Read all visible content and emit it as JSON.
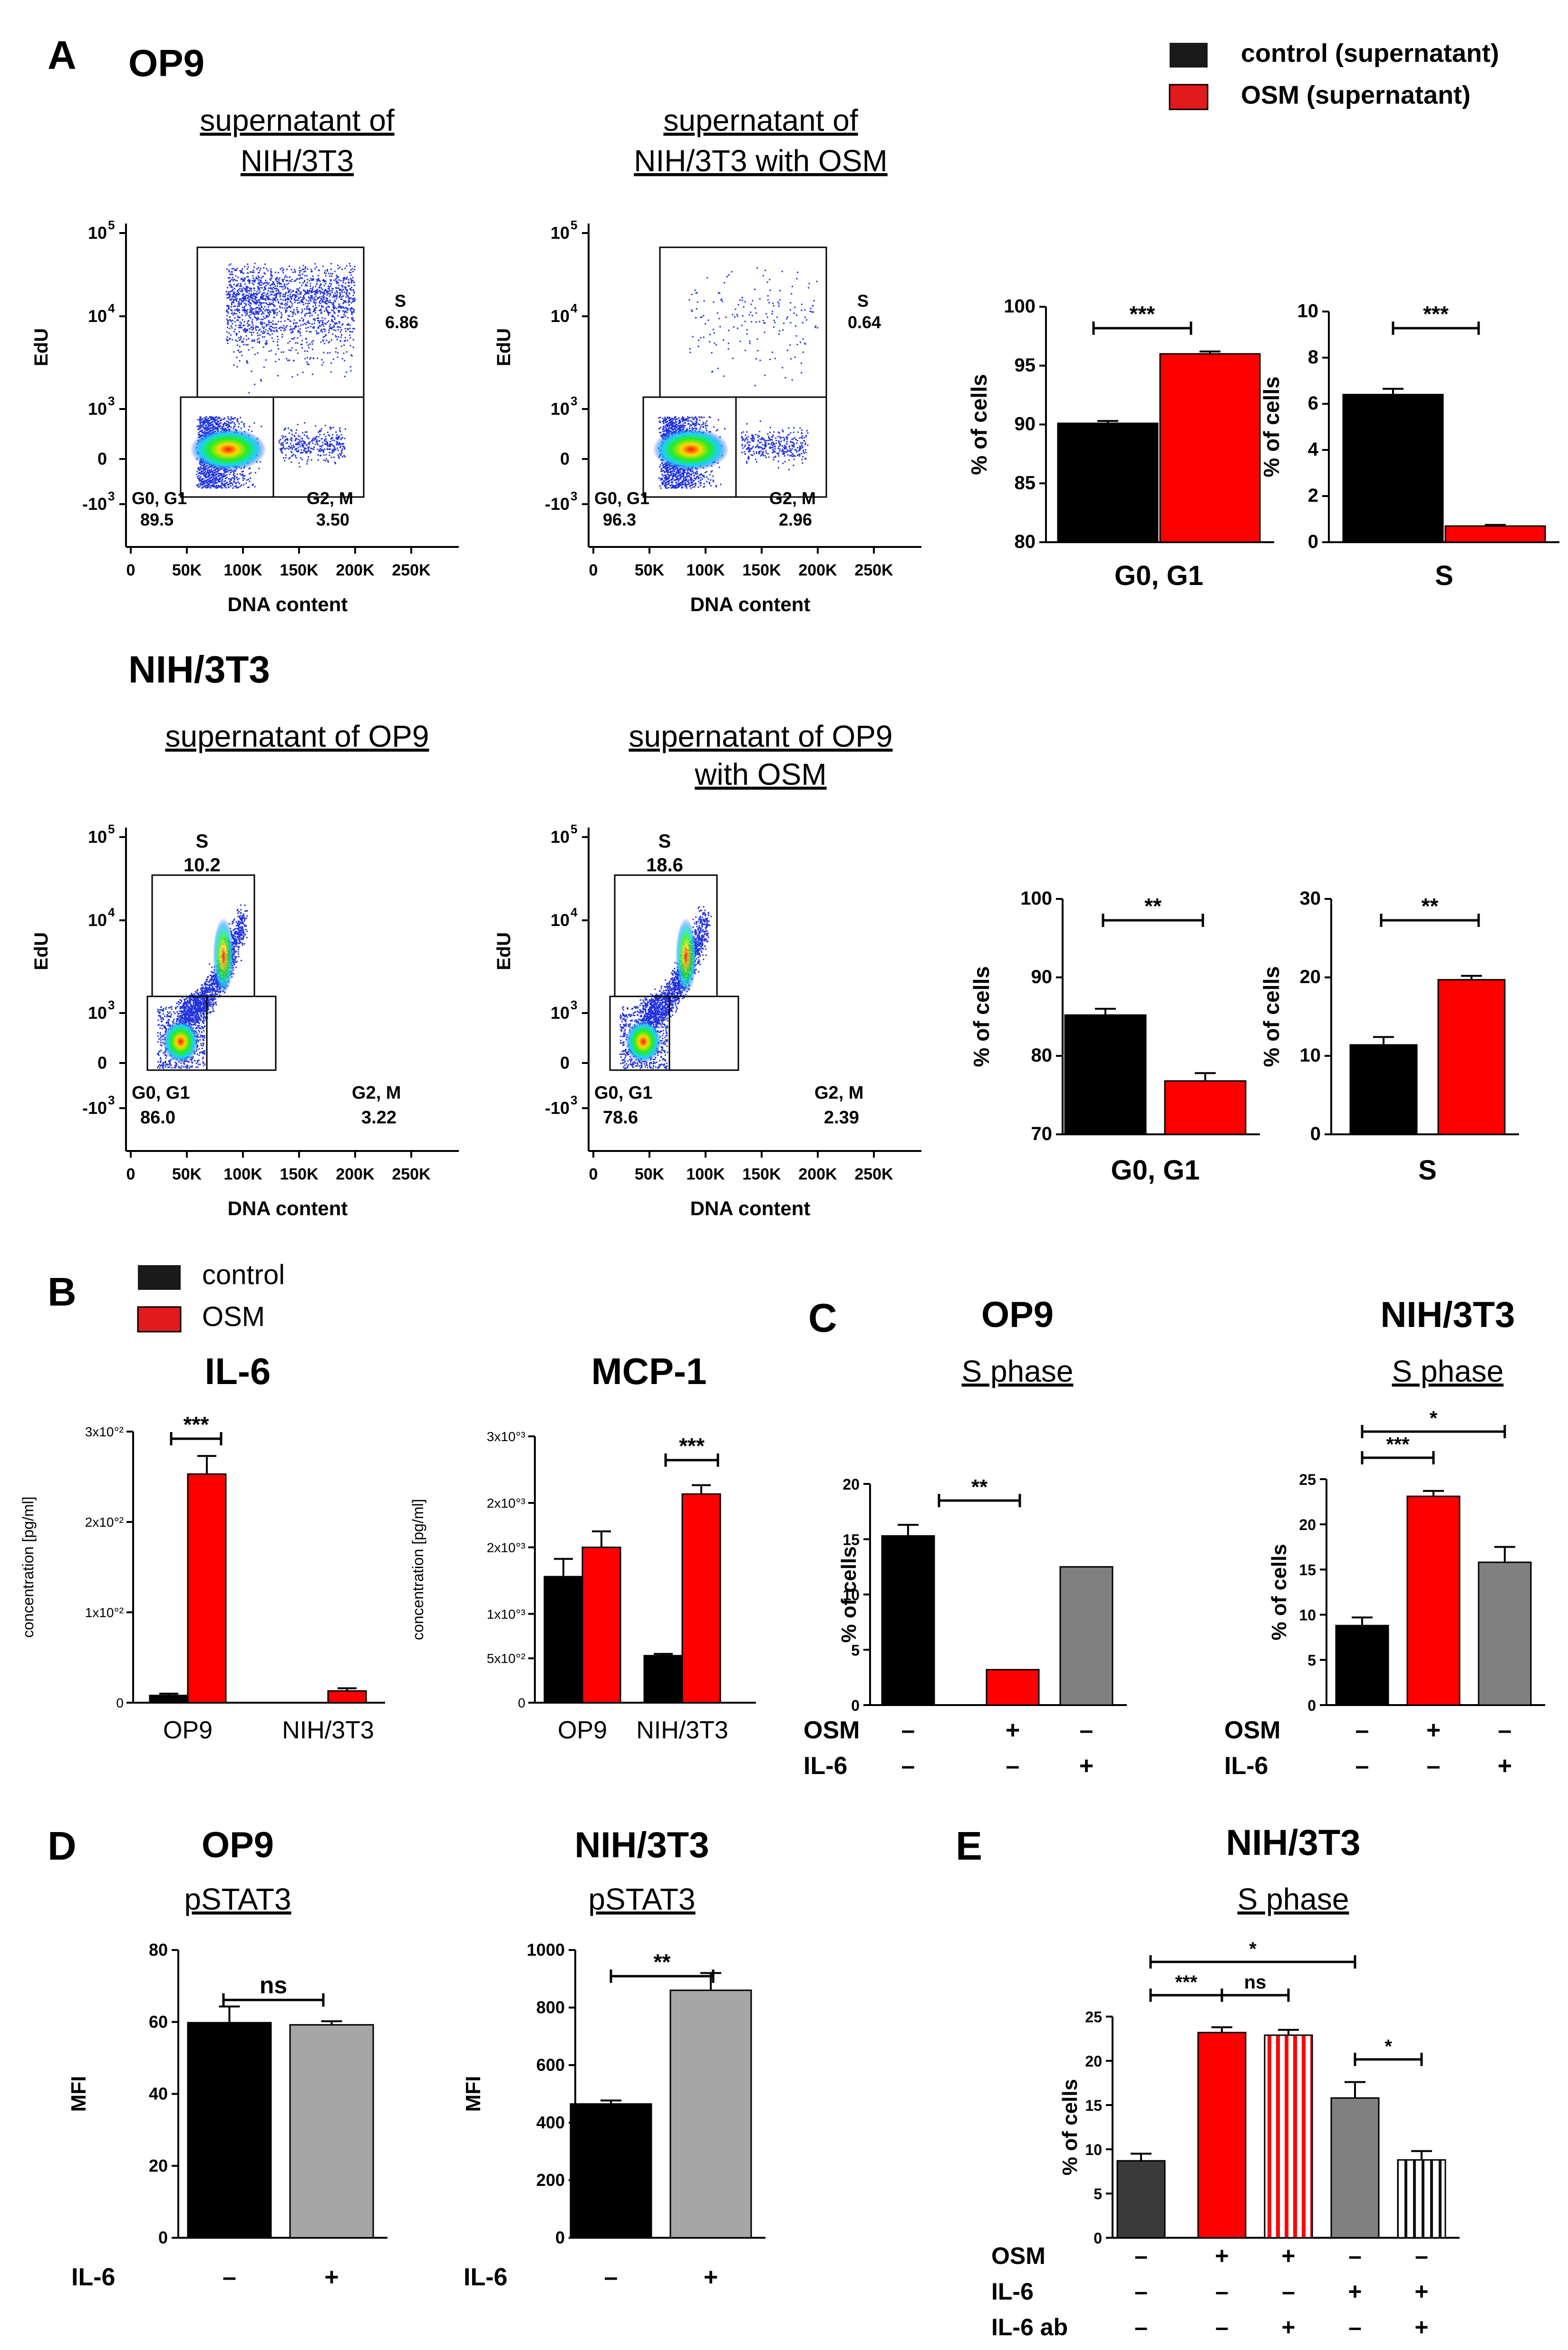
{
  "colors": {
    "black": "#000000",
    "red": "#ff0000",
    "gray": "#808080",
    "lightgray": "#a6a6a6",
    "darkgray": "#3a3a3a",
    "dot": "#2233dd"
  },
  "panel_labels": {
    "A": "A",
    "B": "B",
    "C": "C",
    "D": "D",
    "E": "E"
  },
  "legend_A": [
    {
      "label": "control (supernatant)",
      "color": "#1a1a1a"
    },
    {
      "label": "OSM (supernatant)",
      "color": "#e31a1c"
    }
  ],
  "legend_B": [
    {
      "label": "control",
      "color": "#1a1a1a"
    },
    {
      "label": "OSM",
      "color": "#e31a1c"
    }
  ],
  "section_titles": {
    "op9": "OP9",
    "nih": "NIH/3T3"
  },
  "flow": {
    "y_label": "EdU",
    "x_label": "DNA content",
    "y_ticks": [
      "10",
      "10",
      "10",
      "0",
      "-10"
    ],
    "y_exps": [
      "5",
      "4",
      "3",
      "",
      "3"
    ],
    "x_ticks": [
      "0",
      "50K",
      "100K",
      "150K",
      "200K",
      "250K"
    ],
    "plots": [
      {
        "title1": "supernatant  of",
        "title2": "NIH/3T3",
        "s_name": "S",
        "s_val": "6.86",
        "g1_name": "G0, G1",
        "g1_val": "89.5",
        "g2_name": "G2, M",
        "g2_val": "3.50"
      },
      {
        "title1": "supernatant  of",
        "title2": "NIH/3T3  with OSM",
        "s_name": "S",
        "s_val": "0.64",
        "g1_name": "G0, G1",
        "g1_val": "96.3",
        "g2_name": "G2, M",
        "g2_val": "2.96"
      },
      {
        "title1": "supernatant  of OP9",
        "title2": "",
        "s_name": "S",
        "s_val": "10.2",
        "g1_name": "G0, G1",
        "g1_val": "86.0",
        "g2_name": "G2, M",
        "g2_val": "3.22"
      },
      {
        "title1": "supernatant  of OP9",
        "title2": "with OSM",
        "s_name": "S",
        "s_val": "18.6",
        "g1_name": "G0, G1",
        "g1_val": "78.6",
        "g2_name": "G2, M",
        "g2_val": "2.39"
      }
    ]
  },
  "chart_data": [
    {
      "id": "A_op9_g0g1",
      "type": "bar",
      "ylabel": "% of cells",
      "category": "G0, G1",
      "ylim": [
        80,
        100
      ],
      "yticks": [
        "80",
        "85",
        "90",
        "95",
        "100"
      ],
      "values": [
        90.1,
        96.0
      ],
      "errors": [
        0.2,
        0.2
      ],
      "series": [
        "control (supernatant)",
        "OSM (supernatant)"
      ],
      "sig": [
        {
          "label": "***"
        }
      ]
    },
    {
      "id": "A_op9_s",
      "type": "bar",
      "ylabel": "% of cells",
      "category": "S",
      "ylim": [
        0,
        10
      ],
      "yticks": [
        "0",
        "2",
        "4",
        "6",
        "8",
        "10"
      ],
      "values": [
        6.4,
        0.7
      ],
      "errors": [
        0.25,
        0.05
      ],
      "series": [
        "control (supernatant)",
        "OSM (supernatant)"
      ],
      "sig": [
        {
          "label": "***"
        }
      ]
    },
    {
      "id": "A_nih_g0g1",
      "type": "bar",
      "ylabel": "% of cells",
      "category": "G0, G1",
      "ylim": [
        70,
        100
      ],
      "yticks": [
        "70",
        "80",
        "90",
        "100"
      ],
      "values": [
        85.2,
        76.8
      ],
      "errors": [
        0.8,
        1.0
      ],
      "series": [
        "control (supernatant)",
        "OSM (supernatant)"
      ],
      "sig": [
        {
          "label": "**"
        }
      ]
    },
    {
      "id": "A_nih_s",
      "type": "bar",
      "ylabel": "% of cells",
      "category": "S",
      "ylim": [
        0,
        30
      ],
      "yticks": [
        "0",
        "10",
        "20",
        "30"
      ],
      "values": [
        11.4,
        19.7
      ],
      "errors": [
        1.0,
        0.5
      ],
      "series": [
        "control (supernatant)",
        "OSM (supernatant)"
      ],
      "sig": [
        {
          "label": "**"
        }
      ]
    },
    {
      "id": "B_il6",
      "type": "bar",
      "title": "IL-6",
      "ylabel": "concentration [pg/ml]",
      "ylim": [
        0,
        300
      ],
      "yticks": [
        "0",
        "1x10°²",
        "2x10°²",
        "3x10°²"
      ],
      "categories": [
        "OP9",
        "NIH/3T3"
      ],
      "series": [
        {
          "name": "control",
          "values": [
            8,
            0
          ],
          "errors": [
            2,
            0
          ]
        },
        {
          "name": "OSM",
          "values": [
            253,
            13
          ],
          "errors": [
            20,
            3
          ]
        }
      ],
      "sig": [
        {
          "label": "***"
        }
      ]
    },
    {
      "id": "B_mcp1",
      "type": "bar",
      "title": "MCP-1",
      "ylabel": "concentration [pg/ml]",
      "ylim": [
        0,
        3000
      ],
      "yticks": [
        "0",
        "5x10°²",
        "1x10°³",
        "2x10°³",
        "2x10°³",
        "3x10°³"
      ],
      "categories": [
        "OP9",
        "NIH/3T3"
      ],
      "series": [
        {
          "name": "control",
          "values": [
            1420,
            530
          ],
          "errors": [
            200,
            20
          ]
        },
        {
          "name": "OSM",
          "values": [
            1750,
            2350
          ],
          "errors": [
            180,
            100
          ]
        }
      ],
      "sig": [
        {
          "label": "***"
        }
      ]
    },
    {
      "id": "C_op9",
      "type": "bar",
      "title": "OP9",
      "subtitle": "S phase",
      "ylabel": "% of cells",
      "ylim": [
        0,
        20
      ],
      "yticks": [
        "0",
        "5",
        "10",
        "15",
        "20"
      ],
      "values": [
        15.3,
        3.2,
        12.5
      ],
      "errors": [
        1.0,
        0,
        0
      ],
      "bar_colors": [
        "#000000",
        "#ff0000",
        "#808080"
      ],
      "rows": [
        {
          "label": "OSM",
          "marks": [
            "–",
            "+",
            "–"
          ]
        },
        {
          "label": "IL-6",
          "marks": [
            "–",
            "–",
            "+"
          ]
        }
      ],
      "sig": [
        {
          "label": "**"
        }
      ]
    },
    {
      "id": "C_nih",
      "type": "bar",
      "title": "NIH/3T3",
      "subtitle": "S phase",
      "ylabel": "% of cells",
      "ylim": [
        0,
        25
      ],
      "yticks": [
        "0",
        "5",
        "10",
        "15",
        "20",
        "25"
      ],
      "values": [
        8.8,
        23.1,
        15.8
      ],
      "errors": [
        0.9,
        0.6,
        1.7
      ],
      "bar_colors": [
        "#000000",
        "#ff0000",
        "#808080"
      ],
      "rows": [
        {
          "label": "OSM",
          "marks": [
            "–",
            "+",
            "–"
          ]
        },
        {
          "label": "IL-6",
          "marks": [
            "–",
            "–",
            "+"
          ]
        }
      ],
      "sig": [
        {
          "label": "***"
        },
        {
          "label": "*"
        }
      ]
    },
    {
      "id": "D_op9",
      "type": "bar",
      "title": "OP9",
      "subtitle": "pSTAT3",
      "ylabel": "MFI",
      "ylim": [
        0,
        80
      ],
      "yticks": [
        "0",
        "20",
        "40",
        "60",
        "80"
      ],
      "values": [
        59.8,
        59.2
      ],
      "errors": [
        4.5,
        1.0
      ],
      "bar_colors": [
        "#000000",
        "#a6a6a6"
      ],
      "rows": [
        {
          "label": "IL-6",
          "marks": [
            "–",
            "+"
          ]
        }
      ],
      "sig": [
        {
          "label": "ns"
        }
      ]
    },
    {
      "id": "D_nih",
      "type": "bar",
      "title": "NIH/3T3",
      "subtitle": "pSTAT3",
      "ylabel": "MFI",
      "ylim": [
        0,
        1000
      ],
      "yticks": [
        "0",
        "200",
        "400",
        "600",
        "800",
        "1000"
      ],
      "values": [
        465,
        860
      ],
      "errors": [
        12,
        60
      ],
      "bar_colors": [
        "#000000",
        "#a6a6a6"
      ],
      "rows": [
        {
          "label": "IL-6",
          "marks": [
            "–",
            "+"
          ]
        }
      ],
      "sig": [
        {
          "label": "**"
        }
      ]
    },
    {
      "id": "E_nih",
      "type": "bar",
      "title": "NIH/3T3",
      "subtitle": "S phase",
      "ylabel": "% of cells",
      "ylim": [
        0,
        25
      ],
      "yticks": [
        "0",
        "5",
        "10",
        "15",
        "20",
        "25"
      ],
      "values": [
        8.7,
        23.2,
        22.9,
        15.8,
        8.8
      ],
      "errors": [
        0.8,
        0.6,
        0.6,
        1.8,
        1.0
      ],
      "bar_colors": [
        "#3a3a3a",
        "#ff0000",
        "stripe-red",
        "#808080",
        "stripe-black"
      ],
      "rows": [
        {
          "label": "OSM",
          "marks": [
            "–",
            "+",
            "+",
            "–",
            "–"
          ]
        },
        {
          "label": "IL-6",
          "marks": [
            "–",
            "–",
            "–",
            "+",
            "+"
          ]
        },
        {
          "label": "IL-6 ab",
          "marks": [
            "–",
            "–",
            "+",
            "–",
            "+"
          ]
        }
      ],
      "sig": [
        {
          "label": "***"
        },
        {
          "label": "ns"
        },
        {
          "label": "*"
        },
        {
          "label": "*"
        }
      ]
    }
  ]
}
